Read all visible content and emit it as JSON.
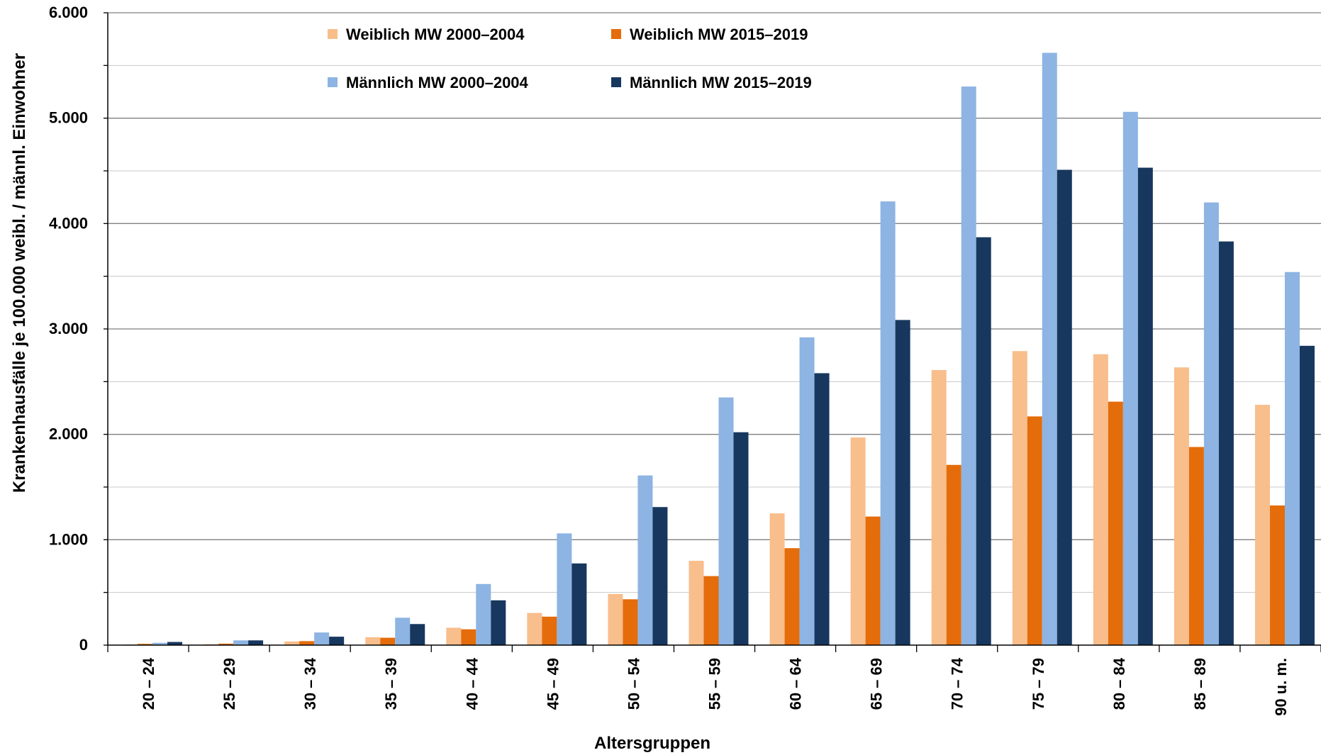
{
  "chart_data": {
    "type": "bar",
    "title": "",
    "xlabel": "Altersgruppen",
    "ylabel": "Krankenhausfälle je 100.000 weibl. / männl. Einwohner",
    "ylim": [
      0,
      6000
    ],
    "yticks": [
      "0",
      "1.000",
      "2.000",
      "3.000",
      "4.000",
      "5.000",
      "6.000"
    ],
    "grid": true,
    "legend_position": "top",
    "categories": [
      "20 – 24",
      "25 – 29",
      "30 – 34",
      "35 – 39",
      "40 – 44",
      "45 – 49",
      "50 – 54",
      "55 – 59",
      "60 – 64",
      "65 – 69",
      "70 – 74",
      "75 – 79",
      "80 – 84",
      "85 – 89",
      "90 u. m."
    ],
    "series": [
      {
        "name": "Weiblich MW 2000–2004",
        "color": "#f8be8c",
        "values": [
          6,
          9,
          35,
          75,
          165,
          305,
          485,
          800,
          1250,
          1970,
          2610,
          2790,
          2760,
          2635,
          2280
        ]
      },
      {
        "name": "Weiblich MW 2015–2019",
        "color": "#e46c0a",
        "values": [
          12,
          14,
          38,
          70,
          150,
          270,
          435,
          655,
          920,
          1220,
          1710,
          2170,
          2310,
          1880,
          1325
        ]
      },
      {
        "name": "Männlich MW 2000–2004",
        "color": "#8db4e2",
        "values": [
          22,
          45,
          120,
          260,
          580,
          1060,
          1610,
          2350,
          2920,
          4210,
          5300,
          5620,
          5060,
          4200,
          3540
        ]
      },
      {
        "name": "Männlich MW 2015–2019",
        "color": "#17375e",
        "values": [
          30,
          45,
          80,
          200,
          425,
          775,
          1310,
          2020,
          2580,
          3085,
          3870,
          4510,
          4530,
          3830,
          2840
        ]
      }
    ]
  }
}
